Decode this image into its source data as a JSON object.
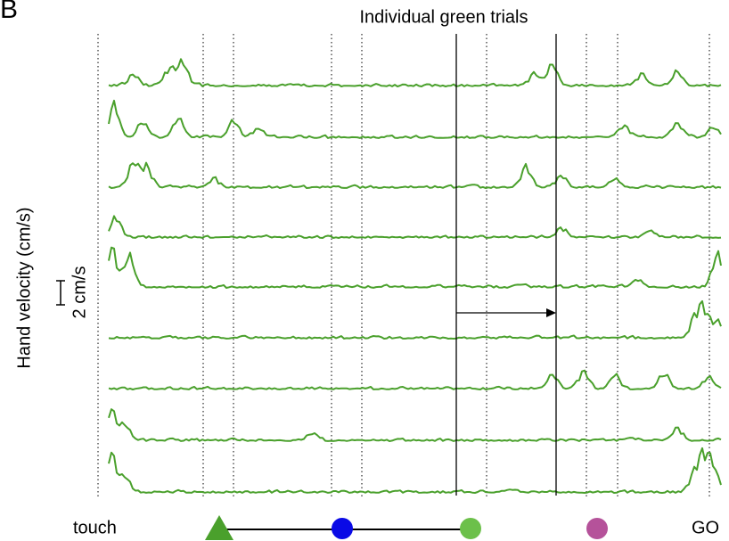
{
  "panel_label": "B",
  "title": "Individual green trials",
  "y_axis_label": "Hand velocity (cm/s)",
  "scale_bar_label": "2 cm/s",
  "events": {
    "start": "touch",
    "end": "GO"
  }
}
